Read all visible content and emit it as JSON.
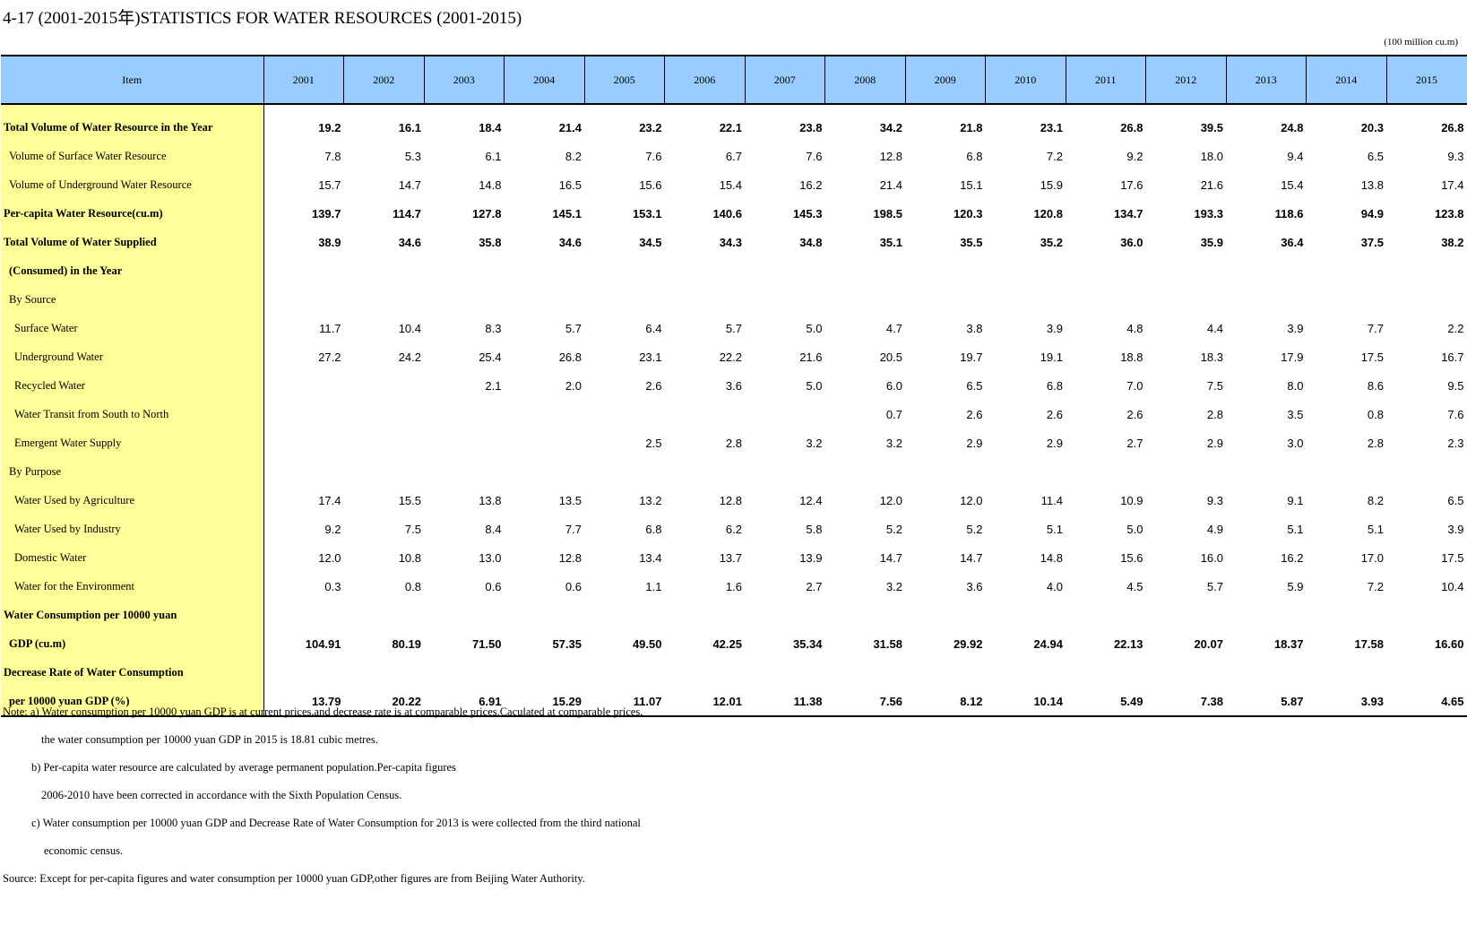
{
  "title": "4-17 (2001-2015年)STATISTICS FOR WATER RESOURCES (2001-2015)",
  "unit": "(100 million cu.m)",
  "table": {
    "item_header": "Item",
    "years": [
      "2001",
      "2002",
      "2003",
      "2004",
      "2005",
      "2006",
      "2007",
      "2008",
      "2009",
      "2010",
      "2011",
      "2012",
      "2013",
      "2014",
      "2015"
    ],
    "rows": [
      {
        "label": "Total Volume of Water Resource in the Year",
        "bold": true,
        "indent": 0,
        "values": [
          "19.2",
          "16.1",
          "18.4",
          "21.4",
          "23.2",
          "22.1",
          "23.8",
          "34.2",
          "21.8",
          "23.1",
          "26.8",
          "39.5",
          "24.8",
          "20.3",
          "26.8"
        ]
      },
      {
        "label": "Volume of Surface Water Resource",
        "bold": false,
        "indent": 1,
        "values": [
          "7.8",
          "5.3",
          "6.1",
          "8.2",
          "7.6",
          "6.7",
          "7.6",
          "12.8",
          "6.8",
          "7.2",
          "9.2",
          "18.0",
          "9.4",
          "6.5",
          "9.3"
        ]
      },
      {
        "label": "Volume of Underground Water Resource",
        "bold": false,
        "indent": 1,
        "values": [
          "15.7",
          "14.7",
          "14.8",
          "16.5",
          "15.6",
          "15.4",
          "16.2",
          "21.4",
          "15.1",
          "15.9",
          "17.6",
          "21.6",
          "15.4",
          "13.8",
          "17.4"
        ]
      },
      {
        "label": "Per-capita Water Resource(cu.m)",
        "bold": true,
        "indent": 0,
        "values": [
          "139.7",
          "114.7",
          "127.8",
          "145.1",
          "153.1",
          "140.6",
          "145.3",
          "198.5",
          "120.3",
          "120.8",
          "134.7",
          "193.3",
          "118.6",
          "94.9",
          "123.8"
        ]
      },
      {
        "label": "Total Volume of Water Supplied",
        "bold": true,
        "indent": 0,
        "values": [
          "38.9",
          "34.6",
          "35.8",
          "34.6",
          "34.5",
          "34.3",
          "34.8",
          "35.1",
          "35.5",
          "35.2",
          "36.0",
          "35.9",
          "36.4",
          "37.5",
          "38.2"
        ]
      },
      {
        "label": "(Consumed) in the Year",
        "bold": true,
        "indent": 1,
        "values": [
          "",
          "",
          "",
          "",
          "",
          "",
          "",
          "",
          "",
          "",
          "",
          "",
          "",
          "",
          ""
        ]
      },
      {
        "label": "By Source",
        "bold": false,
        "indent": 1,
        "values": [
          "",
          "",
          "",
          "",
          "",
          "",
          "",
          "",
          "",
          "",
          "",
          "",
          "",
          "",
          ""
        ]
      },
      {
        "label": "Surface Water",
        "bold": false,
        "indent": 2,
        "values": [
          "11.7",
          "10.4",
          "8.3",
          "5.7",
          "6.4",
          "5.7",
          "5.0",
          "4.7",
          "3.8",
          "3.9",
          "4.8",
          "4.4",
          "3.9",
          "7.7",
          "2.2"
        ]
      },
      {
        "label": "Underground Water",
        "bold": false,
        "indent": 2,
        "values": [
          "27.2",
          "24.2",
          "25.4",
          "26.8",
          "23.1",
          "22.2",
          "21.6",
          "20.5",
          "19.7",
          "19.1",
          "18.8",
          "18.3",
          "17.9",
          "17.5",
          "16.7"
        ]
      },
      {
        "label": "Recycled Water",
        "bold": false,
        "indent": 2,
        "values": [
          "",
          "",
          "2.1",
          "2.0",
          "2.6",
          "3.6",
          "5.0",
          "6.0",
          "6.5",
          "6.8",
          "7.0",
          "7.5",
          "8.0",
          "8.6",
          "9.5"
        ]
      },
      {
        "label": "Water Transit from South to North",
        "bold": false,
        "indent": 2,
        "values": [
          "",
          "",
          "",
          "",
          "",
          "",
          "",
          "0.7",
          "2.6",
          "2.6",
          "2.6",
          "2.8",
          "3.5",
          "0.8",
          "7.6"
        ]
      },
      {
        "label": "Emergent Water Supply",
        "bold": false,
        "indent": 2,
        "values": [
          "",
          "",
          "",
          "",
          "2.5",
          "2.8",
          "3.2",
          "3.2",
          "2.9",
          "2.9",
          "2.7",
          "2.9",
          "3.0",
          "2.8",
          "2.3"
        ]
      },
      {
        "label": "By Purpose",
        "bold": false,
        "indent": 1,
        "values": [
          "",
          "",
          "",
          "",
          "",
          "",
          "",
          "",
          "",
          "",
          "",
          "",
          "",
          "",
          ""
        ]
      },
      {
        "label": "Water Used by Agriculture",
        "bold": false,
        "indent": 2,
        "values": [
          "17.4",
          "15.5",
          "13.8",
          "13.5",
          "13.2",
          "12.8",
          "12.4",
          "12.0",
          "12.0",
          "11.4",
          "10.9",
          "9.3",
          "9.1",
          "8.2",
          "6.5"
        ]
      },
      {
        "label": "Water Used by Industry",
        "bold": false,
        "indent": 2,
        "values": [
          "9.2",
          "7.5",
          "8.4",
          "7.7",
          "6.8",
          "6.2",
          "5.8",
          "5.2",
          "5.2",
          "5.1",
          "5.0",
          "4.9",
          "5.1",
          "5.1",
          "3.9"
        ]
      },
      {
        "label": "Domestic Water",
        "bold": false,
        "indent": 2,
        "values": [
          "12.0",
          "10.8",
          "13.0",
          "12.8",
          "13.4",
          "13.7",
          "13.9",
          "14.7",
          "14.7",
          "14.8",
          "15.6",
          "16.0",
          "16.2",
          "17.0",
          "17.5"
        ]
      },
      {
        "label": "Water for the Environment",
        "bold": false,
        "indent": 2,
        "values": [
          "0.3",
          "0.8",
          "0.6",
          "0.6",
          "1.1",
          "1.6",
          "2.7",
          "3.2",
          "3.6",
          "4.0",
          "4.5",
          "5.7",
          "5.9",
          "7.2",
          "10.4"
        ]
      },
      {
        "label": "Water Consumption per 10000 yuan",
        "bold": true,
        "indent": 0,
        "values": [
          "",
          "",
          "",
          "",
          "",
          "",
          "",
          "",
          "",
          "",
          "",
          "",
          "",
          "",
          ""
        ]
      },
      {
        "label": "GDP (cu.m)",
        "bold": true,
        "indent": 1,
        "values": [
          "104.91",
          "80.19",
          "71.50",
          "57.35",
          "49.50",
          "42.25",
          "35.34",
          "31.58",
          "29.92",
          "24.94",
          "22.13",
          "20.07",
          "18.37",
          "17.58",
          "16.60"
        ]
      },
      {
        "label": "Decrease Rate of Water Consumption",
        "bold": true,
        "indent": 0,
        "values": [
          "",
          "",
          "",
          "",
          "",
          "",
          "",
          "",
          "",
          "",
          "",
          "",
          "",
          "",
          ""
        ]
      },
      {
        "label": "per 10000 yuan GDP (%)",
        "bold": true,
        "indent": 1,
        "values": [
          "13.79",
          "20.22",
          "6.91",
          "15.29",
          "11.07",
          "12.01",
          "11.38",
          "7.56",
          "8.12",
          "10.14",
          "5.49",
          "7.38",
          "5.87",
          "3.93",
          "4.65"
        ]
      }
    ]
  },
  "notes": [
    {
      "text": "Note:  a) Water consumption per 10000 yuan GDP is at current prices,and decrease rate is at comparable prices.Caculated at comparable prices,",
      "indent": 0
    },
    {
      "text": "the water consumption per 10000 yuan GDP in 2015 is 18.81 cubic metres.",
      "indent": 2
    },
    {
      "text": "b) Per-capita water resource are calculated by average permanent population.Per-capita figures",
      "indent": 1
    },
    {
      "text": "2006-2010 have been corrected in accordance with the Sixth Population Census.",
      "indent": 2
    },
    {
      "text": "c) Water consumption per 10000 yuan GDP and Decrease Rate of Water Consumption for 2013 is were collected from the third  national",
      "indent": 1
    },
    {
      "text": "economic census.",
      "indent": 3
    },
    {
      "text": "Source: Except for per-capita figures and water consumption per 10000 yuan GDP,other figures are from Beijing Water Authority.",
      "indent": 0
    }
  ]
}
